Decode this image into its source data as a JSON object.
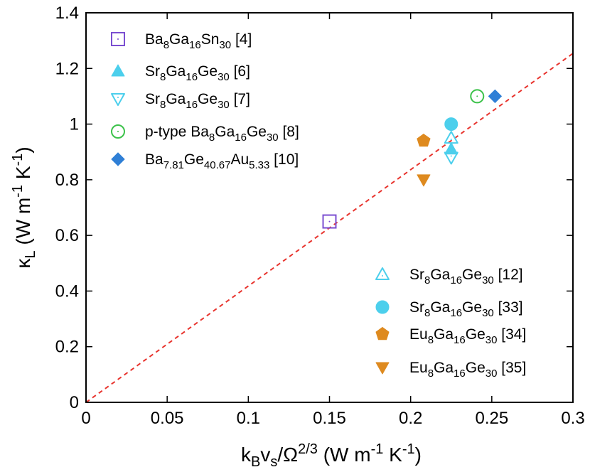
{
  "chart_data": {
    "type": "scatter",
    "xlabel_parts": [
      "k",
      "B",
      "v",
      "s",
      "/Ω",
      "2/3",
      " (W m",
      "-1",
      " K",
      "-1",
      ")"
    ],
    "ylabel_parts": [
      "κ",
      "L",
      " (W m",
      "-1",
      " K",
      "-1",
      ")"
    ],
    "xlim": [
      0,
      0.3
    ],
    "ylim": [
      0,
      1.4
    ],
    "xticks": [
      "0",
      "0.05",
      "0.1",
      "0.15",
      "0.2",
      "0.25",
      "0.3"
    ],
    "yticks": [
      "0",
      "0.2",
      "0.4",
      "0.6",
      "0.8",
      "1",
      "1.2",
      "1.4"
    ],
    "xtick_values": [
      0,
      0.05,
      0.1,
      0.15,
      0.2,
      0.25,
      0.3
    ],
    "ytick_values": [
      0,
      0.2,
      0.4,
      0.6,
      0.8,
      1.0,
      1.2,
      1.4
    ],
    "fit_line": {
      "slope": 4.18,
      "style": "dashed",
      "color": "#e8342e"
    },
    "series": [
      {
        "name": "Ba8Ga16Sn30 [4]",
        "label_parts": [
          "Ba",
          "8",
          "Ga",
          "16",
          "Sn",
          "30",
          " [4]"
        ],
        "marker": "square-open",
        "color": "#7b4fd1",
        "points": [
          [
            0.15,
            0.65
          ]
        ]
      },
      {
        "name": "Sr8Ga16Ge30 [6]",
        "label_parts": [
          "Sr",
          "8",
          "Ga",
          "16",
          "Ge",
          "30",
          " [6]"
        ],
        "marker": "triangle-up-filled",
        "color": "#4ccfec",
        "points": [
          [
            0.225,
            0.91
          ]
        ]
      },
      {
        "name": "Sr8Ga16Ge30 [7]",
        "label_parts": [
          "Sr",
          "8",
          "Ga",
          "16",
          "Ge",
          "30",
          " [7]"
        ],
        "marker": "triangle-down-open",
        "color": "#4ccfec",
        "points": [
          [
            0.225,
            0.88
          ]
        ]
      },
      {
        "name": "p-type Ba8Ga16Ge30 [8]",
        "label_parts": [
          "p-type Ba",
          "8",
          "Ga",
          "16",
          "Ge",
          "30",
          " [8]"
        ],
        "marker": "circle-open",
        "color": "#3cc24a",
        "points": [
          [
            0.241,
            1.1
          ]
        ]
      },
      {
        "name": "Ba7.81Ge40.67Au5.33 [10]",
        "label_parts": [
          "Ba",
          "7.81",
          "Ge",
          "40.67",
          "Au",
          "5.33",
          " [10]"
        ],
        "marker": "diamond-filled",
        "color": "#2f7fd6",
        "points": [
          [
            0.252,
            1.1
          ]
        ]
      },
      {
        "name": "Sr8Ga16Ge30 [12]",
        "label_parts": [
          "Sr",
          "8",
          "Ga",
          "16",
          "Ge",
          "30",
          " [12]"
        ],
        "marker": "triangle-up-open",
        "color": "#4ccfec",
        "points": [
          [
            0.225,
            0.95
          ]
        ]
      },
      {
        "name": "Sr8Ga16Ge30 [33]",
        "label_parts": [
          "Sr",
          "8",
          "Ga",
          "16",
          "Ge",
          "30",
          " [33]"
        ],
        "marker": "circle-filled",
        "color": "#4ccfec",
        "points": [
          [
            0.225,
            1.0
          ]
        ]
      },
      {
        "name": "Eu8Ga16Ge30 [34]",
        "label_parts": [
          "Eu",
          "8",
          "Ga",
          "16",
          "Ge",
          "30",
          " [34]"
        ],
        "marker": "pentagon-filled",
        "color": "#de8a1f",
        "points": [
          [
            0.208,
            0.94
          ]
        ]
      },
      {
        "name": "Eu8Ga16Ge30 [35]",
        "label_parts": [
          "Eu",
          "8",
          "Ga",
          "16",
          "Ge",
          "30",
          " [35]"
        ],
        "marker": "triangle-down-filled",
        "color": "#de8a1f",
        "points": [
          [
            0.208,
            0.8
          ]
        ]
      }
    ],
    "legend_groups": [
      {
        "position": "top-left",
        "series_indices": [
          0,
          1,
          2,
          3,
          4
        ]
      },
      {
        "position": "bottom-right",
        "series_indices": [
          5,
          6,
          7,
          8
        ]
      }
    ]
  }
}
